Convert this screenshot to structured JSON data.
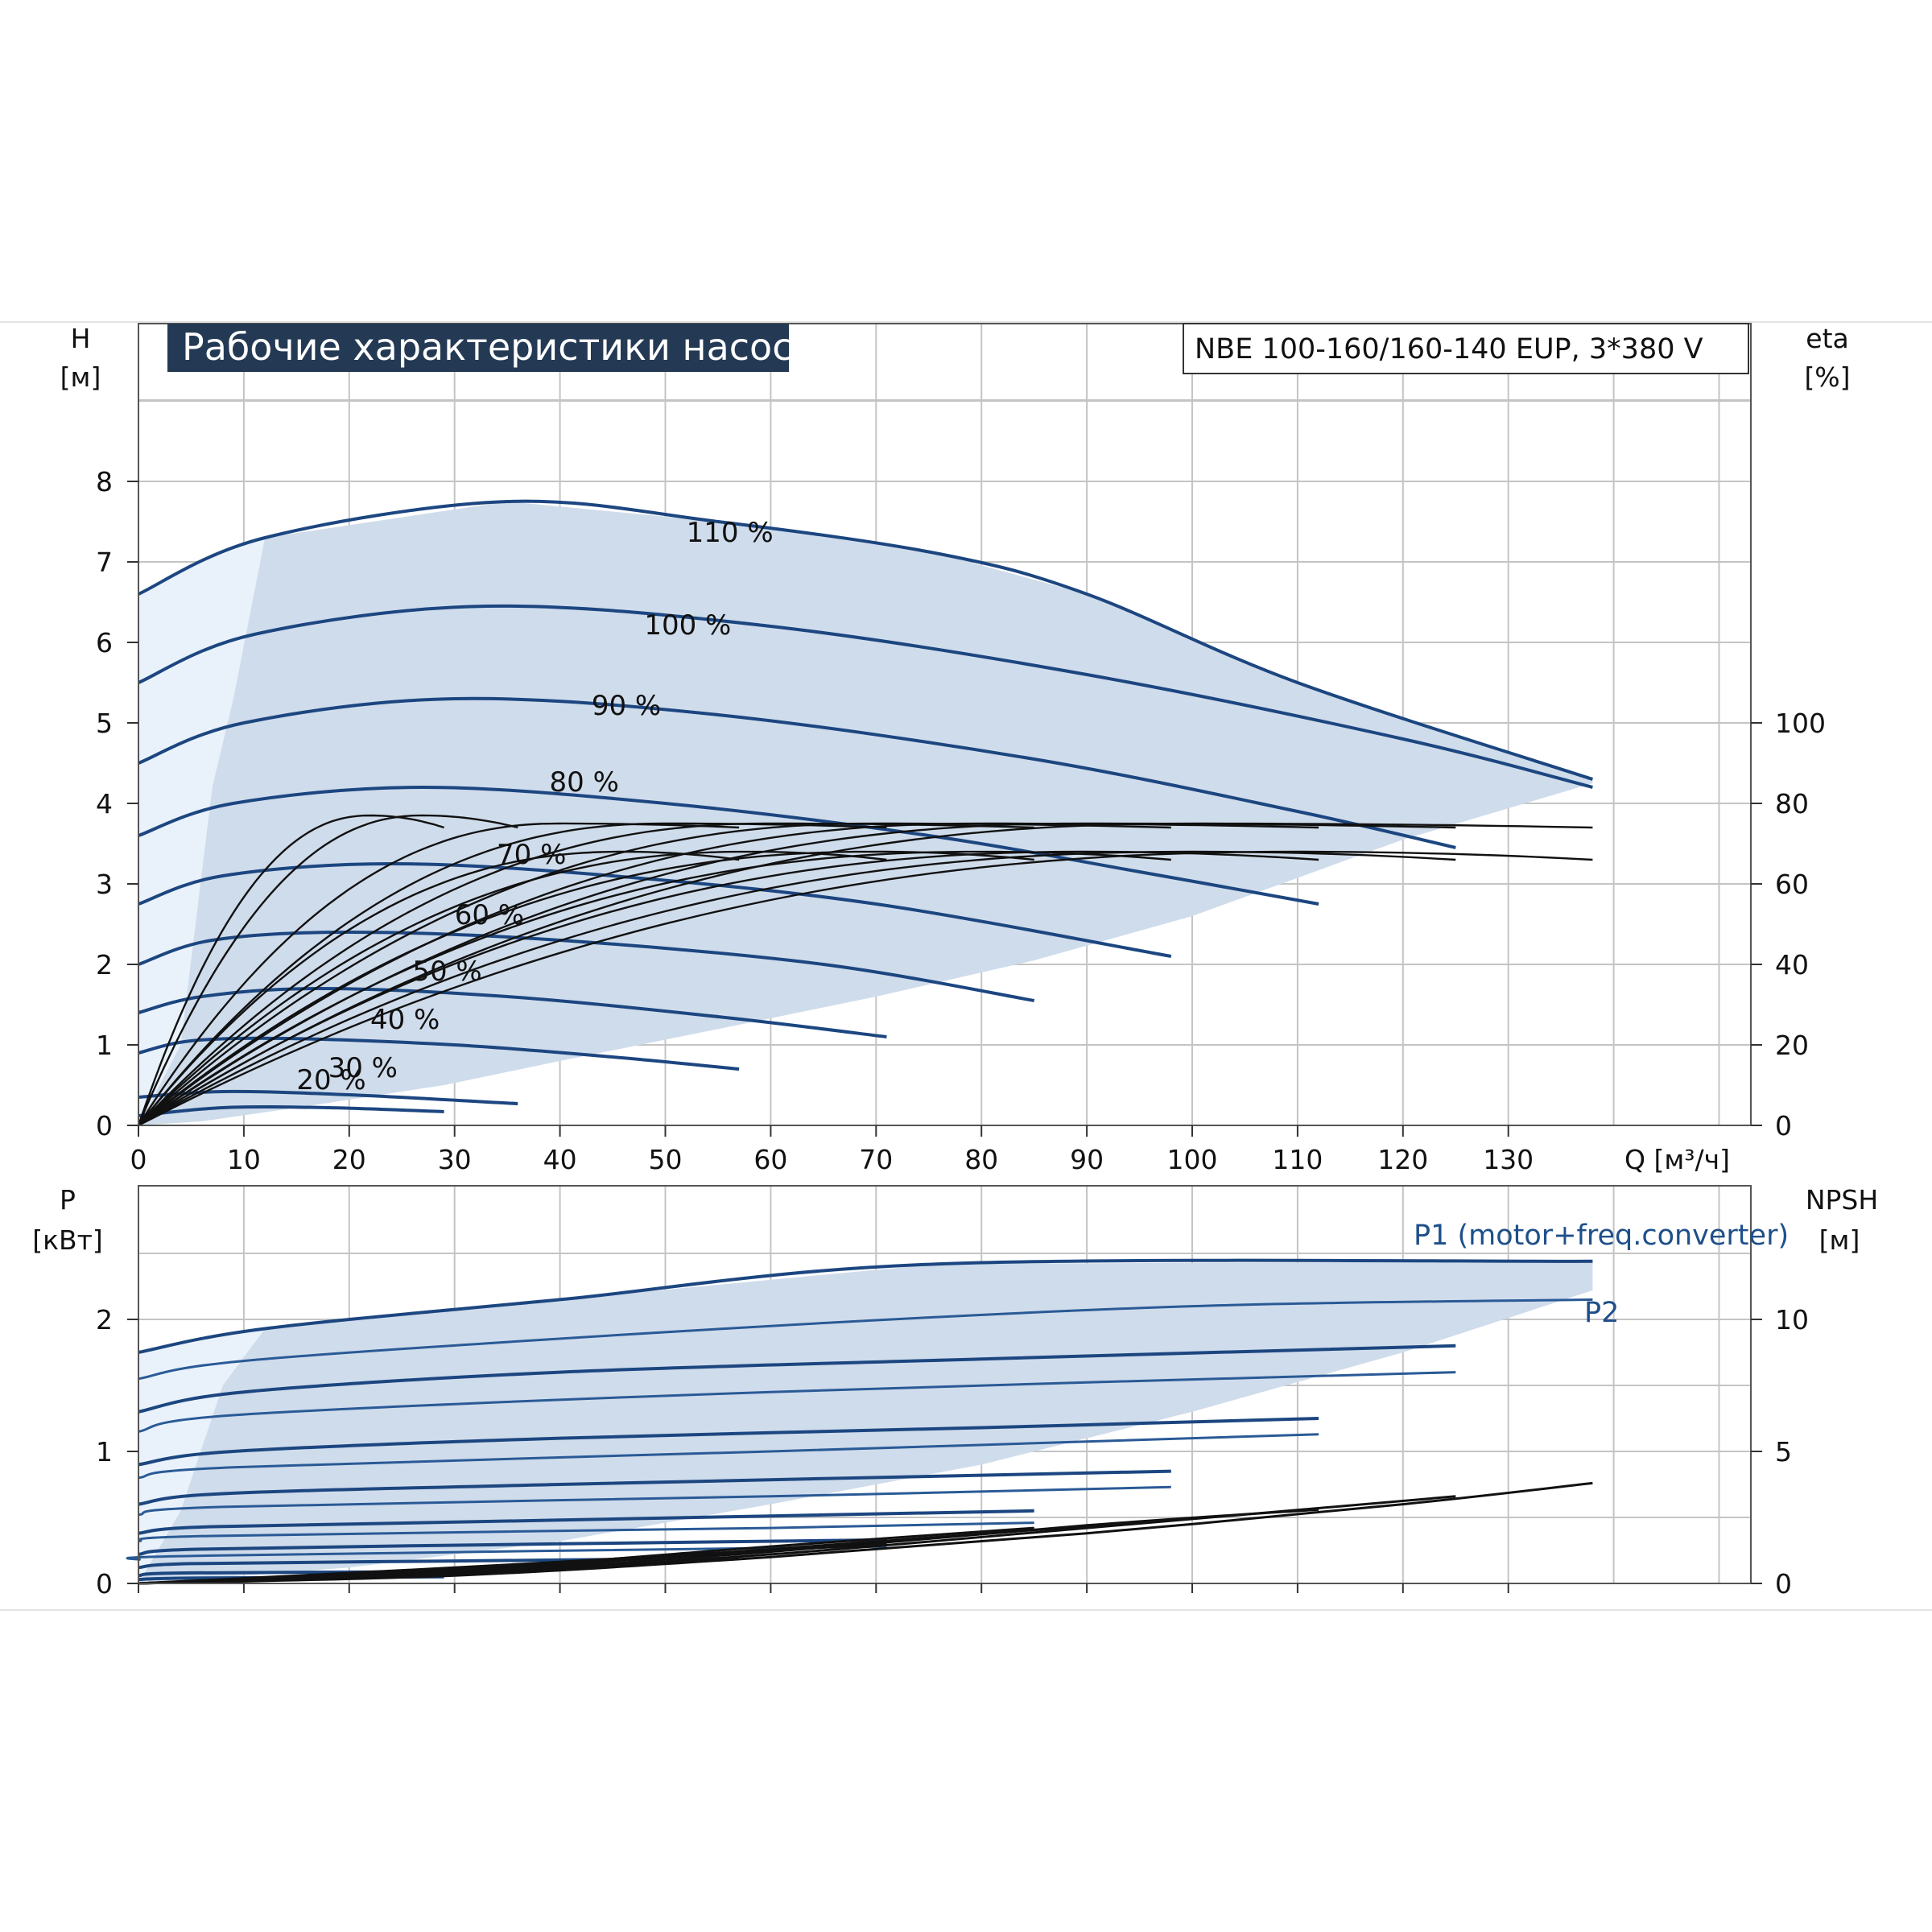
{
  "chart_data": [
    {
      "type": "line",
      "title": "Рабочие характеристики насоса",
      "model": "NBE 100-160/160-140 EUP, 3*380 V",
      "xlabel": "Q [м³/ч]",
      "ylabel": "H",
      "ylabel_unit": "[м]",
      "y2label": "eta",
      "y2label_unit": "[%]",
      "xlim": [
        0,
        150
      ],
      "ylim": [
        0,
        9.2
      ],
      "y2lim": [
        0,
        160
      ],
      "xticks": [
        "0",
        "10",
        "20",
        "30",
        "40",
        "50",
        "60",
        "70",
        "80",
        "90",
        "100",
        "110",
        "120",
        "130"
      ],
      "yticks": [
        "0",
        "1",
        "2",
        "3",
        "4",
        "5",
        "6",
        "7",
        "8"
      ],
      "y2ticks": [
        "0",
        "20",
        "40",
        "60",
        "80",
        "100"
      ],
      "grid": true,
      "envelope": [
        [
          0,
          0
        ],
        [
          4,
          0.6
        ],
        [
          12,
          2.3
        ],
        [
          30,
          3.7
        ],
        [
          60,
          5.6
        ],
        [
          90,
          6.6
        ],
        [
          138,
          7.7
        ],
        [
          138,
          4.3
        ],
        [
          100,
          3.85
        ],
        [
          60,
          2.4
        ],
        [
          30,
          0.8
        ],
        [
          10,
          0.1
        ],
        [
          0,
          0
        ]
      ],
      "head_curves": [
        {
          "label": "110 %",
          "q_max": 138,
          "points": [
            [
              0,
              6.6
            ],
            [
              12,
              7.3
            ],
            [
              35,
              7.75
            ],
            [
              55,
              7.5
            ],
            [
              76,
              7.1
            ],
            [
              90,
              6.6
            ],
            [
              110,
              5.5
            ],
            [
              138,
              4.3
            ]
          ]
        },
        {
          "label": "100 %",
          "q_max": 138,
          "points": [
            [
              0,
              5.5
            ],
            [
              11,
              6.1
            ],
            [
              33,
              6.45
            ],
            [
              60,
              6.2
            ],
            [
              90,
              5.6
            ],
            [
              120,
              4.8
            ],
            [
              138,
              4.2
            ]
          ]
        },
        {
          "label": "90 %",
          "q_max": 125,
          "points": [
            [
              0,
              4.5
            ],
            [
              10,
              5.0
            ],
            [
              30,
              5.3
            ],
            [
              55,
              5.1
            ],
            [
              85,
              4.55
            ],
            [
              110,
              3.9
            ],
            [
              125,
              3.45
            ]
          ]
        },
        {
          "label": "80 %",
          "q_max": 112,
          "points": [
            [
              0,
              3.6
            ],
            [
              9,
              4.0
            ],
            [
              27,
              4.2
            ],
            [
              50,
              4.0
            ],
            [
              75,
              3.6
            ],
            [
              95,
              3.15
            ],
            [
              112,
              2.75
            ]
          ]
        },
        {
          "label": "70 %",
          "q_max": 98,
          "points": [
            [
              0,
              2.75
            ],
            [
              8,
              3.1
            ],
            [
              24,
              3.25
            ],
            [
              45,
              3.1
            ],
            [
              70,
              2.75
            ],
            [
              98,
              2.1
            ]
          ]
        },
        {
          "label": "60 %",
          "q_max": 85,
          "points": [
            [
              0,
              2.0
            ],
            [
              7,
              2.3
            ],
            [
              20,
              2.4
            ],
            [
              40,
              2.3
            ],
            [
              65,
              2.0
            ],
            [
              85,
              1.55
            ]
          ]
        },
        {
          "label": "50 %",
          "q_max": 71,
          "points": [
            [
              0,
              1.4
            ],
            [
              6,
              1.6
            ],
            [
              17,
              1.7
            ],
            [
              35,
              1.6
            ],
            [
              55,
              1.35
            ],
            [
              71,
              1.1
            ]
          ]
        },
        {
          "label": "40 %",
          "q_max": 57,
          "points": [
            [
              0,
              0.9
            ],
            [
              5,
              1.05
            ],
            [
              14,
              1.08
            ],
            [
              30,
              1.0
            ],
            [
              45,
              0.85
            ],
            [
              57,
              0.7
            ]
          ]
        },
        {
          "label": "30 %",
          "q_max": 36,
          "points": [
            [
              0,
              0.35
            ],
            [
              8,
              0.42
            ],
            [
              20,
              0.38
            ],
            [
              36,
              0.27
            ]
          ]
        },
        {
          "label": "20 %",
          "q_max": 29,
          "points": [
            [
              0,
              0.12
            ],
            [
              8,
              0.22
            ],
            [
              18,
              0.22
            ],
            [
              29,
              0.17
            ]
          ]
        }
      ],
      "label_positions_data": {
        "110 %": [
          52,
          7.25
        ],
        "100 %": [
          48,
          6.1
        ],
        "90 %": [
          43,
          5.1
        ],
        "80 %": [
          39,
          4.15
        ],
        "70 %": [
          34,
          3.25
        ],
        "60 %": [
          30,
          2.5
        ],
        "50 %": [
          26,
          1.8
        ],
        "40 %": [
          22,
          1.2
        ],
        "30 %": [
          18,
          0.6
        ],
        "20 %": [
          15,
          0.45
        ]
      },
      "efficiency_curves": [
        {
          "q_max": 138,
          "peak": [
            100,
            75
          ],
          "end_eta": 74
        },
        {
          "q_max": 138,
          "peak": [
            110,
            68
          ],
          "end_eta": 66
        },
        {
          "q_max": 125,
          "peak": [
            90,
            75
          ],
          "end_eta": 74
        },
        {
          "q_max": 125,
          "peak": [
            100,
            68
          ],
          "end_eta": 66
        },
        {
          "q_max": 112,
          "peak": [
            80,
            75
          ],
          "end_eta": 74
        },
        {
          "q_max": 112,
          "peak": [
            90,
            68
          ],
          "end_eta": 66
        },
        {
          "q_max": 98,
          "peak": [
            70,
            75
          ],
          "end_eta": 74
        },
        {
          "q_max": 98,
          "peak": [
            80,
            68
          ],
          "end_eta": 66
        },
        {
          "q_max": 85,
          "peak": [
            60,
            75
          ],
          "end_eta": 74
        },
        {
          "q_max": 85,
          "peak": [
            70,
            68
          ],
          "end_eta": 66
        },
        {
          "q_max": 71,
          "peak": [
            50,
            75
          ],
          "end_eta": 74
        },
        {
          "q_max": 71,
          "peak": [
            58,
            68
          ],
          "end_eta": 66
        },
        {
          "q_max": 57,
          "peak": [
            40,
            75
          ],
          "end_eta": 74
        },
        {
          "q_max": 57,
          "peak": [
            46,
            68
          ],
          "end_eta": 66
        },
        {
          "q_max": 36,
          "peak": [
            27,
            77
          ],
          "end_eta": 74
        },
        {
          "q_max": 29,
          "peak": [
            22,
            77
          ],
          "end_eta": 74
        }
      ]
    },
    {
      "type": "line",
      "ylabel": "P",
      "ylabel_unit": "[кВт]",
      "y2label": "NPSH",
      "y2label_unit": "[м]",
      "xlim": [
        0,
        150
      ],
      "ylim": [
        0,
        2.8
      ],
      "y2lim": [
        0,
        14
      ],
      "yticks": [
        "0",
        "1",
        "2"
      ],
      "y2ticks": [
        "0",
        "5",
        "10"
      ],
      "grid": true,
      "series_labels": [
        "P1 (motor+freq.converter)",
        "P2"
      ],
      "envelope": [
        [
          0,
          0
        ],
        [
          4,
          0.5
        ],
        [
          12,
          1.9
        ],
        [
          30,
          2.1
        ],
        [
          76,
          2.45
        ],
        [
          138,
          2.45
        ],
        [
          138,
          2.2
        ],
        [
          100,
          1.2
        ],
        [
          60,
          0.5
        ],
        [
          30,
          0.15
        ],
        [
          0,
          0
        ]
      ],
      "p1_curves": [
        {
          "q_max": 138,
          "points": [
            [
              0,
              1.75
            ],
            [
              12,
              1.93
            ],
            [
              40,
              2.15
            ],
            [
              76,
              2.42
            ],
            [
              138,
              2.44
            ]
          ]
        },
        {
          "q_max": 125,
          "points": [
            [
              0,
              1.3
            ],
            [
              10,
              1.45
            ],
            [
              40,
              1.6
            ],
            [
              80,
              1.7
            ],
            [
              125,
              1.8
            ]
          ]
        },
        {
          "q_max": 112,
          "points": [
            [
              0,
              0.9
            ],
            [
              9,
              1.0
            ],
            [
              40,
              1.1
            ],
            [
              80,
              1.18
            ],
            [
              112,
              1.25
            ]
          ]
        },
        {
          "q_max": 98,
          "points": [
            [
              0,
              0.6
            ],
            [
              8,
              0.68
            ],
            [
              40,
              0.75
            ],
            [
              98,
              0.85
            ]
          ]
        },
        {
          "q_max": 85,
          "points": [
            [
              0,
              0.38
            ],
            [
              7,
              0.43
            ],
            [
              40,
              0.48
            ],
            [
              85,
              0.55
            ]
          ]
        },
        {
          "q_max": 71,
          "points": [
            [
              0,
              0.22
            ],
            [
              6,
              0.26
            ],
            [
              40,
              0.3
            ],
            [
              71,
              0.33
            ]
          ]
        },
        {
          "q_max": 57,
          "points": [
            [
              0,
              0.12
            ],
            [
              5,
              0.15
            ],
            [
              30,
              0.17
            ],
            [
              57,
              0.19
            ]
          ]
        },
        {
          "q_max": 36,
          "points": [
            [
              0,
              0.06
            ],
            [
              5,
              0.08
            ],
            [
              36,
              0.09
            ]
          ]
        },
        {
          "q_max": 29,
          "points": [
            [
              0,
              0.03
            ],
            [
              5,
              0.04
            ],
            [
              29,
              0.05
            ]
          ]
        }
      ],
      "p2_curves": [
        {
          "q_max": 138,
          "points": [
            [
              0,
              1.55
            ],
            [
              12,
              1.7
            ],
            [
              60,
              1.95
            ],
            [
              100,
              2.1
            ],
            [
              138,
              2.15
            ]
          ]
        },
        {
          "q_max": 125,
          "points": [
            [
              0,
              1.15
            ],
            [
              10,
              1.28
            ],
            [
              60,
              1.45
            ],
            [
              125,
              1.6
            ]
          ]
        },
        {
          "q_max": 112,
          "points": [
            [
              0,
              0.8
            ],
            [
              9,
              0.88
            ],
            [
              60,
              1.0
            ],
            [
              112,
              1.13
            ]
          ]
        },
        {
          "q_max": 98,
          "points": [
            [
              0,
              0.52
            ],
            [
              8,
              0.58
            ],
            [
              60,
              0.66
            ],
            [
              98,
              0.73
            ]
          ]
        },
        {
          "q_max": 85,
          "points": [
            [
              0,
              0.32
            ],
            [
              7,
              0.36
            ],
            [
              60,
              0.42
            ],
            [
              85,
              0.46
            ]
          ]
        },
        {
          "q_max": 71,
          "points": [
            [
              0,
              0.18
            ],
            [
              6,
              0.21
            ],
            [
              71,
              0.28
            ]
          ]
        }
      ],
      "npsh_curves": [
        {
          "q_max": 138,
          "points": [
            [
              0,
              0
            ],
            [
              30,
              0.3
            ],
            [
              60,
              1.0
            ],
            [
              90,
              1.9
            ],
            [
              120,
              3.0
            ],
            [
              138,
              3.8
            ]
          ]
        },
        {
          "q_max": 125,
          "points": [
            [
              0,
              0
            ],
            [
              30,
              0.35
            ],
            [
              60,
              1.1
            ],
            [
              90,
              2.1
            ],
            [
              125,
              3.3
            ]
          ]
        },
        {
          "q_max": 112,
          "points": [
            [
              0,
              0
            ],
            [
              30,
              0.4
            ],
            [
              60,
              1.2
            ],
            [
              90,
              2.2
            ],
            [
              112,
              2.8
            ]
          ]
        },
        {
          "q_max": 98,
          "points": [
            [
              0,
              0
            ],
            [
              30,
              0.45
            ],
            [
              60,
              1.3
            ],
            [
              98,
              2.4
            ]
          ]
        },
        {
          "q_max": 85,
          "points": [
            [
              0,
              0
            ],
            [
              30,
              0.5
            ],
            [
              60,
              1.4
            ],
            [
              85,
              2.1
            ]
          ]
        },
        {
          "q_max": 71,
          "points": [
            [
              0,
              0
            ],
            [
              30,
              0.55
            ],
            [
              71,
              1.5
            ]
          ]
        },
        {
          "q_max": 57,
          "points": [
            [
              0,
              0
            ],
            [
              30,
              0.6
            ],
            [
              57,
              1.2
            ]
          ]
        }
      ]
    }
  ]
}
